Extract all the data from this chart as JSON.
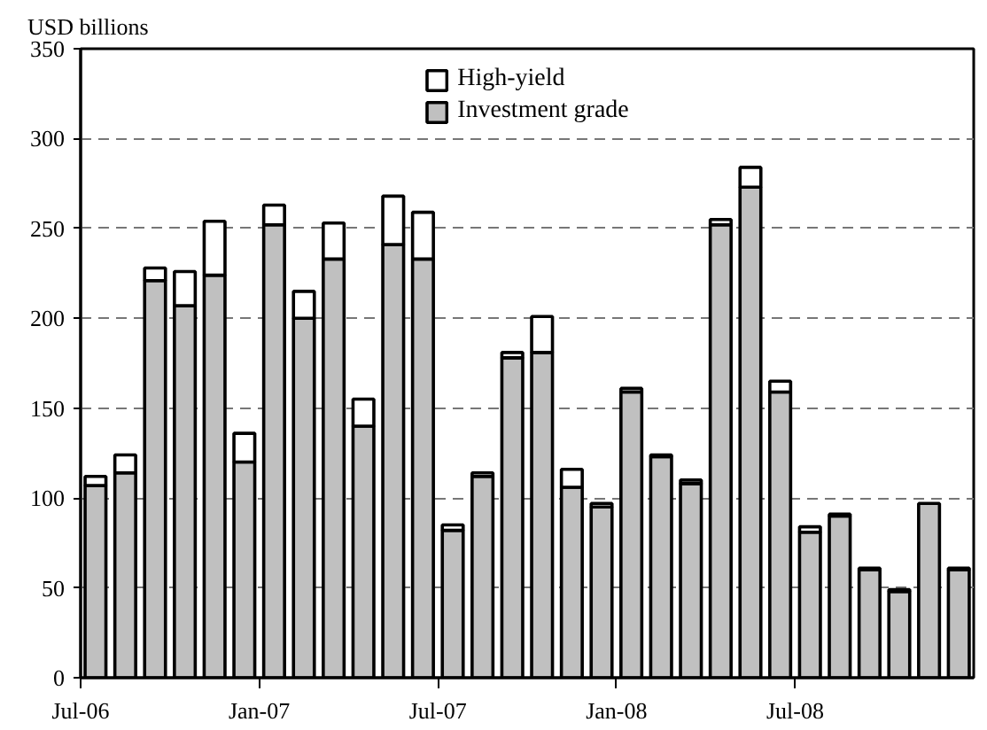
{
  "chart_data": {
    "type": "bar",
    "stacked": true,
    "ylabel": "USD billions",
    "categories": [
      "Jul-06",
      null,
      null,
      null,
      null,
      null,
      "Jan-07",
      null,
      null,
      null,
      null,
      null,
      "Jul-07",
      null,
      null,
      null,
      null,
      null,
      "Jan-08",
      null,
      null,
      null,
      null,
      null,
      "Jul-08",
      null,
      null,
      null,
      null,
      null
    ],
    "series": [
      {
        "name": "Investment grade",
        "color": "#c0c0c0",
        "values": [
          107,
          114,
          221,
          207,
          224,
          120,
          252,
          200,
          233,
          140,
          241,
          233,
          82,
          112,
          178,
          181,
          106,
          95,
          159,
          123,
          108,
          252,
          273,
          159,
          81,
          90,
          60,
          48,
          97,
          60
        ]
      },
      {
        "name": "High-yield",
        "color": "#ffffff",
        "values": [
          5,
          10,
          7,
          19,
          30,
          16,
          11,
          15,
          20,
          15,
          27,
          26,
          3,
          2,
          3,
          20,
          10,
          2,
          2,
          1,
          2,
          3,
          11,
          6,
          3,
          1,
          1,
          1,
          null,
          1
        ]
      }
    ],
    "ylim": [
      0,
      350
    ],
    "yticks": [
      0,
      50,
      100,
      150,
      200,
      250,
      300,
      350
    ],
    "grid": "y",
    "legend": "top"
  }
}
